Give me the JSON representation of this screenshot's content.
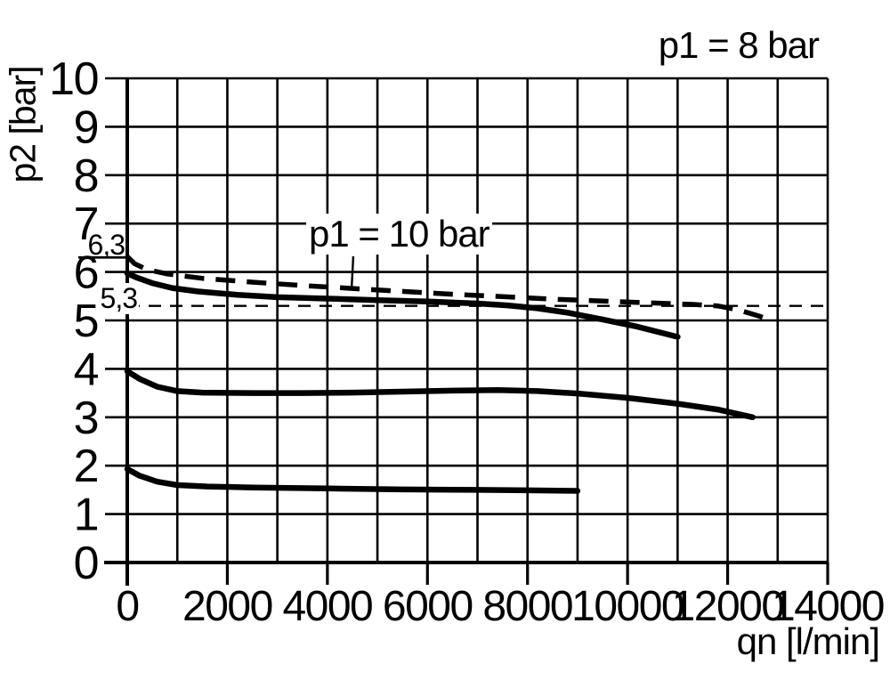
{
  "colors": {
    "ink": "#000000",
    "background": "#ffffff"
  },
  "chart_data": {
    "type": "line",
    "title": "",
    "xlabel": "qn [l/min]",
    "ylabel": "p2 [bar]",
    "xlim": [
      0,
      14000
    ],
    "ylim": [
      0,
      10
    ],
    "x_ticks": [
      0,
      2000,
      4000,
      6000,
      8000,
      10000,
      12000,
      14000
    ],
    "y_ticks": [
      0,
      1,
      2,
      3,
      4,
      5,
      6,
      7,
      8,
      9,
      10
    ],
    "grid": {
      "shown": true,
      "x_line_every": 1000,
      "y_line_every": 1,
      "legend": "none"
    },
    "annotations": [
      {
        "text": "p1 = 8 bar",
        "role": "family-label-top-right"
      },
      {
        "text": "p1 = 10 bar",
        "role": "curve-label-with-leader",
        "leader_qn": 4500
      }
    ],
    "axis_markers": [
      {
        "label": "6,3",
        "value": 6.3,
        "style": "short-solid-tick-left-of-axis"
      }
    ],
    "reference_lines": [
      {
        "label": "5,3",
        "value": 5.3,
        "style": "thin-dashed-horizontal"
      }
    ],
    "series": [
      {
        "label": "p1 = 10 bar",
        "style": "dashed",
        "points": [
          [
            0,
            6.32
          ],
          [
            150,
            6.17
          ],
          [
            400,
            6.05
          ],
          [
            800,
            5.96
          ],
          [
            1500,
            5.87
          ],
          [
            2500,
            5.79
          ],
          [
            3500,
            5.72
          ],
          [
            4500,
            5.66
          ],
          [
            5500,
            5.6
          ],
          [
            6500,
            5.54
          ],
          [
            7500,
            5.49
          ],
          [
            8500,
            5.44
          ],
          [
            9500,
            5.4
          ],
          [
            10500,
            5.36
          ],
          [
            11300,
            5.33
          ],
          [
            11800,
            5.3
          ],
          [
            12200,
            5.22
          ],
          [
            12600,
            5.1
          ],
          [
            12850,
            5.01
          ]
        ]
      },
      {
        "label": "p1 = 8 bar",
        "style": "solid",
        "points": [
          [
            0,
            5.97
          ],
          [
            200,
            5.88
          ],
          [
            500,
            5.77
          ],
          [
            900,
            5.67
          ],
          [
            1400,
            5.6
          ],
          [
            2200,
            5.53
          ],
          [
            3000,
            5.48
          ],
          [
            4000,
            5.45
          ],
          [
            5000,
            5.42
          ],
          [
            6000,
            5.39
          ],
          [
            7000,
            5.35
          ],
          [
            7600,
            5.31
          ],
          [
            8200,
            5.25
          ],
          [
            8800,
            5.16
          ],
          [
            9500,
            5.02
          ],
          [
            10200,
            4.87
          ],
          [
            11000,
            4.66
          ]
        ]
      },
      {
        "label": "",
        "style": "solid",
        "points": [
          [
            0,
            3.95
          ],
          [
            250,
            3.79
          ],
          [
            600,
            3.63
          ],
          [
            1000,
            3.54
          ],
          [
            1500,
            3.51
          ],
          [
            2500,
            3.5
          ],
          [
            3500,
            3.5
          ],
          [
            4500,
            3.51
          ],
          [
            5500,
            3.53
          ],
          [
            6500,
            3.55
          ],
          [
            7400,
            3.56
          ],
          [
            8200,
            3.54
          ],
          [
            9000,
            3.49
          ],
          [
            10000,
            3.4
          ],
          [
            11000,
            3.28
          ],
          [
            11800,
            3.16
          ],
          [
            12500,
            3.0
          ]
        ]
      },
      {
        "label": "",
        "style": "solid",
        "points": [
          [
            0,
            1.93
          ],
          [
            250,
            1.79
          ],
          [
            600,
            1.67
          ],
          [
            1000,
            1.6
          ],
          [
            1600,
            1.57
          ],
          [
            2500,
            1.55
          ],
          [
            4000,
            1.53
          ],
          [
            5500,
            1.51
          ],
          [
            7000,
            1.5
          ],
          [
            8000,
            1.49
          ],
          [
            9000,
            1.48
          ]
        ]
      }
    ]
  }
}
